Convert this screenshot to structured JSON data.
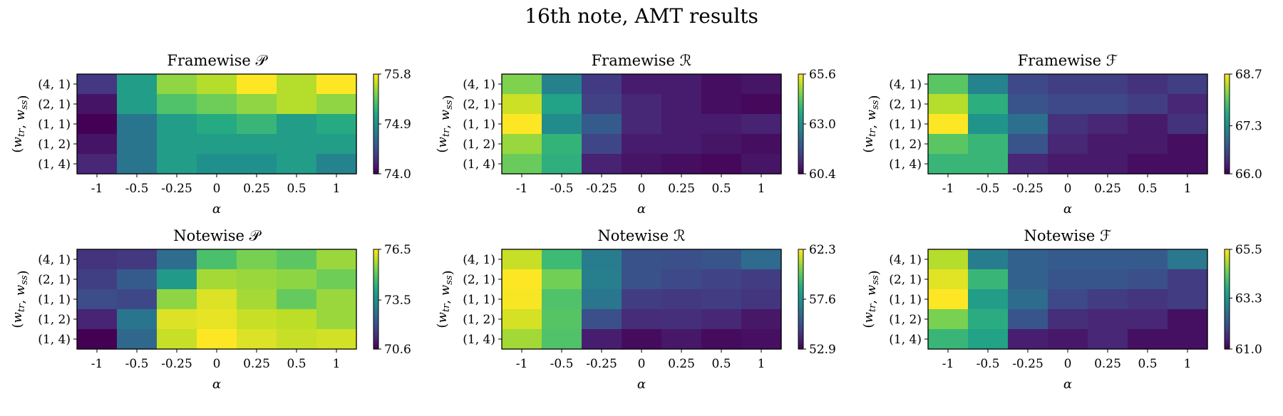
{
  "suptitle": "16th note, AMT results",
  "chart_data": [
    {
      "type": "heatmap",
      "title": "Framewise 𝒫",
      "xlabel": "α",
      "ylabel": "(w_tr, w_ss)",
      "x": [
        "-1",
        "-0.5",
        "-0.25",
        "0",
        "0.25",
        "0.5",
        "1"
      ],
      "y": [
        "(4, 1)",
        "(2, 1)",
        "(1, 1)",
        "(1, 2)",
        "(1, 4)"
      ],
      "values": [
        [
          74.3,
          75.0,
          75.5,
          75.6,
          75.8,
          75.6,
          75.8
        ],
        [
          74.1,
          75.0,
          75.3,
          75.4,
          75.5,
          75.6,
          75.5
        ],
        [
          74.0,
          74.7,
          75.0,
          75.1,
          75.2,
          75.0,
          75.1
        ],
        [
          74.1,
          74.7,
          75.0,
          75.0,
          75.0,
          75.0,
          75.0
        ],
        [
          74.2,
          74.7,
          75.0,
          74.9,
          74.9,
          75.0,
          74.8
        ]
      ],
      "colorbar": {
        "min": 74.0,
        "max": 75.8,
        "ticks": [
          "75.8",
          "74.9",
          "74.0"
        ]
      }
    },
    {
      "type": "heatmap",
      "title": "Framewise ℛ",
      "xlabel": "α",
      "ylabel": "(w_tr, w_ss)",
      "x": [
        "-1",
        "-0.5",
        "-0.25",
        "0",
        "0.25",
        "0.5",
        "1"
      ],
      "y": [
        "(4, 1)",
        "(2, 1)",
        "(1, 1)",
        "(1, 2)",
        "(1, 4)"
      ],
      "values": [
        [
          64.6,
          62.7,
          61.3,
          60.8,
          60.8,
          60.6,
          60.7
        ],
        [
          65.2,
          63.4,
          61.4,
          61.0,
          60.8,
          60.6,
          60.5
        ],
        [
          65.6,
          62.9,
          61.9,
          61.0,
          60.8,
          60.8,
          60.9
        ],
        [
          64.8,
          63.8,
          61.5,
          60.8,
          60.8,
          60.7,
          60.6
        ],
        [
          64.4,
          63.7,
          60.9,
          60.7,
          60.6,
          60.5,
          60.7
        ]
      ],
      "colorbar": {
        "min": 60.4,
        "max": 65.6,
        "ticks": [
          "65.6",
          "63.0",
          "60.4"
        ]
      }
    },
    {
      "type": "heatmap",
      "title": "Framewise ℱ",
      "xlabel": "α",
      "ylabel": "(w_tr, w_ss)",
      "x": [
        "-1",
        "-0.5",
        "-0.25",
        "0",
        "0.25",
        "0.5",
        "1"
      ],
      "y": [
        "(4, 1)",
        "(2, 1)",
        "(1, 1)",
        "(1, 2)",
        "(1, 4)"
      ],
      "values": [
        [
          68.0,
          67.2,
          66.6,
          66.5,
          66.5,
          66.4,
          66.5
        ],
        [
          68.4,
          67.7,
          66.7,
          66.6,
          66.6,
          66.5,
          66.3
        ],
        [
          68.7,
          67.4,
          67.0,
          66.4,
          66.3,
          66.2,
          66.4
        ],
        [
          68.0,
          67.8,
          66.7,
          66.3,
          66.2,
          66.2,
          66.1
        ],
        [
          67.8,
          67.8,
          66.3,
          66.2,
          66.2,
          66.1,
          66.1
        ]
      ],
      "colorbar": {
        "min": 66.0,
        "max": 68.7,
        "ticks": [
          "68.7",
          "67.3",
          "66.0"
        ]
      }
    },
    {
      "type": "heatmap",
      "title": "Notewise 𝒫",
      "xlabel": "α",
      "ylabel": "(w_tr, w_ss)",
      "x": [
        "-1",
        "-0.5",
        "-0.25",
        "0",
        "0.25",
        "0.5",
        "1"
      ],
      "y": [
        "(4, 1)",
        "(2, 1)",
        "(1, 1)",
        "(1, 2)",
        "(1, 4)"
      ],
      "values": [
        [
          71.5,
          71.6,
          72.7,
          74.8,
          75.3,
          75.0,
          75.6
        ],
        [
          71.7,
          72.3,
          73.8,
          75.7,
          75.6,
          75.5,
          75.2
        ],
        [
          72.0,
          71.9,
          75.5,
          76.2,
          75.7,
          75.1,
          75.6
        ],
        [
          71.2,
          72.9,
          76.2,
          76.3,
          76.0,
          75.9,
          75.6
        ],
        [
          70.6,
          72.6,
          76.0,
          76.5,
          76.2,
          76.0,
          76.1
        ]
      ],
      "colorbar": {
        "min": 70.6,
        "max": 76.5,
        "ticks": [
          "76.5",
          "73.5",
          "70.6"
        ]
      }
    },
    {
      "type": "heatmap",
      "title": "Notewise ℛ",
      "xlabel": "α",
      "ylabel": "(w_tr, w_ss)",
      "x": [
        "-1",
        "-0.5",
        "-0.25",
        "0",
        "0.25",
        "0.5",
        "1"
      ],
      "y": [
        "(4, 1)",
        "(2, 1)",
        "(1, 1)",
        "(1, 2)",
        "(1, 4)"
      ],
      "values": [
        [
          61.5,
          59.3,
          56.8,
          55.3,
          55.2,
          55.4,
          56.2
        ],
        [
          62.3,
          60.3,
          56.9,
          55.3,
          55.0,
          54.8,
          54.6
        ],
        [
          62.2,
          59.7,
          56.6,
          54.6,
          54.5,
          54.6,
          54.4
        ],
        [
          61.7,
          59.8,
          55.2,
          54.1,
          54.2,
          54.0,
          53.5
        ],
        [
          61.0,
          59.7,
          53.7,
          53.2,
          53.5,
          53.2,
          53.3
        ]
      ],
      "colorbar": {
        "min": 52.9,
        "max": 62.3,
        "ticks": [
          "62.3",
          "57.6",
          "52.9"
        ]
      }
    },
    {
      "type": "heatmap",
      "title": "Notewise ℱ",
      "xlabel": "α",
      "ylabel": "(w_tr, w_ss)",
      "x": [
        "-1",
        "-0.5",
        "-0.25",
        "0",
        "0.25",
        "0.5",
        "1"
      ],
      "y": [
        "(4, 1)",
        "(2, 1)",
        "(1, 1)",
        "(1, 2)",
        "(1, 4)"
      ],
      "values": [
        [
          65.0,
          62.9,
          62.4,
          62.3,
          62.3,
          62.3,
          62.8
        ],
        [
          65.3,
          64.0,
          62.4,
          62.2,
          62.2,
          62.1,
          61.8
        ],
        [
          65.5,
          63.5,
          62.6,
          62.0,
          61.8,
          61.7,
          61.8
        ],
        [
          64.6,
          63.8,
          62.2,
          61.6,
          61.5,
          61.5,
          61.2
        ],
        [
          64.0,
          63.6,
          61.4,
          61.3,
          61.5,
          61.2,
          61.2
        ]
      ],
      "colorbar": {
        "min": 61.0,
        "max": 65.5,
        "ticks": [
          "65.5",
          "63.3",
          "61.0"
        ]
      }
    }
  ]
}
